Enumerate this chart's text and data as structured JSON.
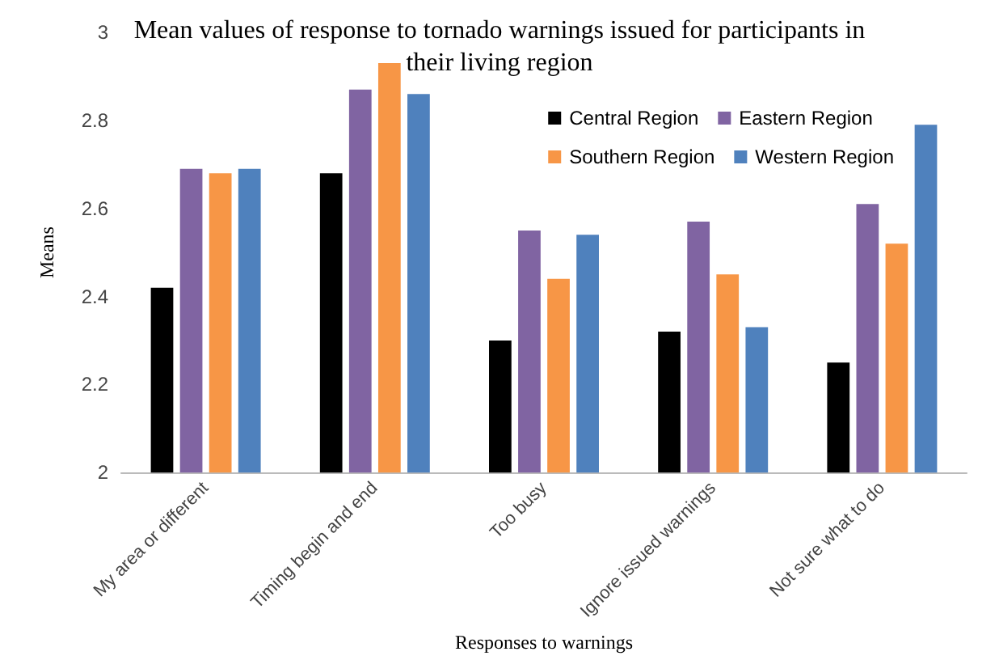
{
  "chart_data": {
    "type": "bar",
    "title": "Mean values of response to tornado warnings issued for participants in\ntheir living region",
    "xlabel": "Responses to warnings",
    "ylabel": "Means",
    "categories": [
      "My area or different",
      "Timing begin and end",
      "Too busy",
      "Ignore issued warnings",
      "Not sure what to do"
    ],
    "series": [
      {
        "name": "Central Region",
        "color": "#000000",
        "values": [
          2.42,
          2.68,
          2.3,
          2.32,
          2.25
        ]
      },
      {
        "name": "Eastern Region",
        "color": "#8064a2",
        "values": [
          2.69,
          2.87,
          2.55,
          2.57,
          2.61
        ]
      },
      {
        "name": "Southern Region",
        "color": "#f79646",
        "values": [
          2.68,
          2.93,
          2.44,
          2.45,
          2.52
        ]
      },
      {
        "name": "Western Region",
        "color": "#4f81bd",
        "values": [
          2.69,
          2.86,
          2.54,
          2.33,
          2.79
        ]
      }
    ],
    "ylim": [
      2,
      3
    ],
    "yticks": [
      2,
      2.2,
      2.4,
      2.6,
      2.8,
      3
    ],
    "grid": false,
    "legend": "top right"
  }
}
